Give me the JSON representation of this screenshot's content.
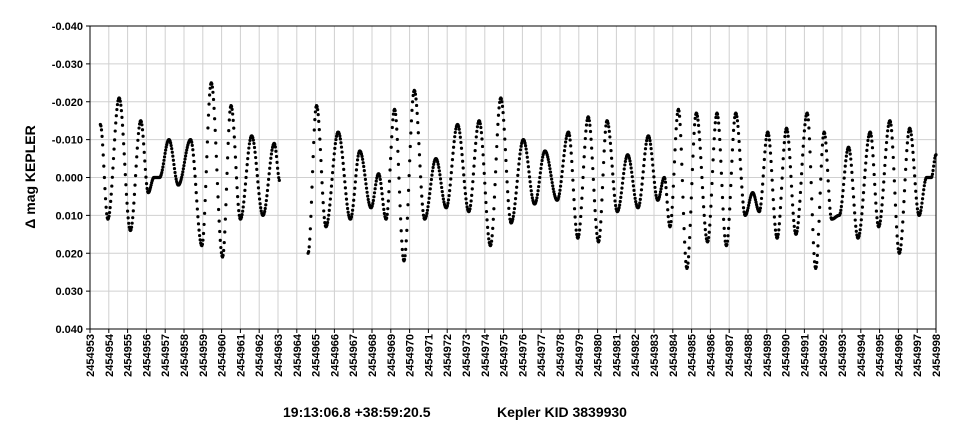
{
  "chart_data": {
    "type": "scatter",
    "title": "",
    "ylabel": "Δ mag KEPLER",
    "xlabel": "",
    "xlim": [
      2454953,
      2454998
    ],
    "ylim": [
      -0.04,
      0.04
    ],
    "y_inverted": true,
    "y_tick_values": [
      -0.04,
      -0.03,
      -0.02,
      -0.01,
      0,
      0.01,
      0.02,
      0.03,
      0.04
    ],
    "y_tick_labels": [
      "-0.040",
      "-0.030",
      "-0.020",
      "-0.010",
      "0.000",
      "0.010",
      "0.020",
      "0.030",
      "0.040"
    ],
    "x_tick_labels": [
      "2454953",
      "2454954",
      "2454955",
      "2454956",
      "2454957",
      "2454958",
      "2454959",
      "2454960",
      "2454961",
      "2454962",
      "2454963",
      "2454964",
      "2454965",
      "2454966",
      "2454967",
      "2454968",
      "2454969",
      "2454970",
      "2454971",
      "2454972",
      "2454973",
      "2454974",
      "2454975",
      "2454976",
      "2454977",
      "2454978",
      "2454979",
      "2454980",
      "2454981",
      "2454982",
      "2454983",
      "2454984",
      "2454985",
      "2454986",
      "2454987",
      "2454988",
      "2454989",
      "2454990",
      "2454991",
      "2454992",
      "2454993",
      "2454994",
      "2454995",
      "2454996",
      "2454997",
      "2454998"
    ],
    "grid": true,
    "marker_color": "#000000",
    "gap": [
      2454963.1,
      2454964.6
    ],
    "extrema": [
      {
        "x": 2454953.55,
        "y": -0.014
      },
      {
        "x": 2454953.95,
        "y": 0.011
      },
      {
        "x": 2454954.55,
        "y": -0.021
      },
      {
        "x": 2454955.15,
        "y": 0.014
      },
      {
        "x": 2454955.7,
        "y": -0.015
      },
      {
        "x": 2454956.1,
        "y": 0.004
      },
      {
        "x": 2454956.4,
        "y": 0.0
      },
      {
        "x": 2454956.7,
        "y": 0.0
      },
      {
        "x": 2454957.2,
        "y": -0.01
      },
      {
        "x": 2454957.7,
        "y": 0.002
      },
      {
        "x": 2454958.35,
        "y": -0.01
      },
      {
        "x": 2454958.95,
        "y": 0.018
      },
      {
        "x": 2454959.45,
        "y": -0.025
      },
      {
        "x": 2454960.05,
        "y": 0.021
      },
      {
        "x": 2454960.5,
        "y": -0.019
      },
      {
        "x": 2454961.0,
        "y": 0.011
      },
      {
        "x": 2454961.6,
        "y": -0.011
      },
      {
        "x": 2454962.2,
        "y": 0.01
      },
      {
        "x": 2454962.8,
        "y": -0.009
      },
      {
        "x": 2454963.1,
        "y": 0.001
      },
      {
        "x": 2454964.6,
        "y": 0.02
      },
      {
        "x": 2454965.05,
        "y": -0.019
      },
      {
        "x": 2454965.55,
        "y": 0.013
      },
      {
        "x": 2454966.2,
        "y": -0.012
      },
      {
        "x": 2454966.85,
        "y": 0.011
      },
      {
        "x": 2454967.35,
        "y": -0.007
      },
      {
        "x": 2454967.95,
        "y": 0.008
      },
      {
        "x": 2454968.35,
        "y": -0.001
      },
      {
        "x": 2454968.75,
        "y": 0.011
      },
      {
        "x": 2454969.2,
        "y": -0.018
      },
      {
        "x": 2454969.7,
        "y": 0.022
      },
      {
        "x": 2454970.25,
        "y": -0.023
      },
      {
        "x": 2454970.8,
        "y": 0.011
      },
      {
        "x": 2454971.4,
        "y": -0.005
      },
      {
        "x": 2454971.95,
        "y": 0.008
      },
      {
        "x": 2454972.55,
        "y": -0.014
      },
      {
        "x": 2454973.15,
        "y": 0.009
      },
      {
        "x": 2454973.7,
        "y": -0.015
      },
      {
        "x": 2454974.3,
        "y": 0.018
      },
      {
        "x": 2454974.85,
        "y": -0.021
      },
      {
        "x": 2454975.4,
        "y": 0.012
      },
      {
        "x": 2454976.05,
        "y": -0.01
      },
      {
        "x": 2454976.65,
        "y": 0.007
      },
      {
        "x": 2454977.2,
        "y": -0.007
      },
      {
        "x": 2454977.85,
        "y": 0.006
      },
      {
        "x": 2454978.45,
        "y": -0.012
      },
      {
        "x": 2454978.95,
        "y": 0.016
      },
      {
        "x": 2454979.5,
        "y": -0.016
      },
      {
        "x": 2454980.05,
        "y": 0.017
      },
      {
        "x": 2454980.5,
        "y": -0.015
      },
      {
        "x": 2454981.05,
        "y": 0.009
      },
      {
        "x": 2454981.6,
        "y": -0.006
      },
      {
        "x": 2454982.15,
        "y": 0.008
      },
      {
        "x": 2454982.7,
        "y": -0.011
      },
      {
        "x": 2454983.2,
        "y": 0.006
      },
      {
        "x": 2454983.55,
        "y": 0.0
      },
      {
        "x": 2454983.85,
        "y": 0.013
      },
      {
        "x": 2454984.3,
        "y": -0.018
      },
      {
        "x": 2454984.75,
        "y": 0.024
      },
      {
        "x": 2454985.25,
        "y": -0.017
      },
      {
        "x": 2454985.85,
        "y": 0.017
      },
      {
        "x": 2454986.35,
        "y": -0.017
      },
      {
        "x": 2454986.85,
        "y": 0.018
      },
      {
        "x": 2454987.35,
        "y": -0.017
      },
      {
        "x": 2454987.85,
        "y": 0.01
      },
      {
        "x": 2454988.25,
        "y": 0.004
      },
      {
        "x": 2454988.6,
        "y": 0.009
      },
      {
        "x": 2454989.05,
        "y": -0.012
      },
      {
        "x": 2454989.55,
        "y": 0.016
      },
      {
        "x": 2454990.05,
        "y": -0.013
      },
      {
        "x": 2454990.55,
        "y": 0.015
      },
      {
        "x": 2454991.15,
        "y": -0.017
      },
      {
        "x": 2454991.6,
        "y": 0.024
      },
      {
        "x": 2454992.05,
        "y": -0.012
      },
      {
        "x": 2454992.45,
        "y": 0.011
      },
      {
        "x": 2454992.85,
        "y": 0.01
      },
      {
        "x": 2454993.35,
        "y": -0.008
      },
      {
        "x": 2454993.85,
        "y": 0.016
      },
      {
        "x": 2454994.5,
        "y": -0.012
      },
      {
        "x": 2454994.95,
        "y": 0.013
      },
      {
        "x": 2454995.55,
        "y": -0.015
      },
      {
        "x": 2454996.05,
        "y": 0.02
      },
      {
        "x": 2454996.6,
        "y": -0.013
      },
      {
        "x": 2454997.1,
        "y": 0.01
      },
      {
        "x": 2454997.5,
        "y": 0.0
      },
      {
        "x": 2454997.75,
        "y": 0.0
      },
      {
        "x": 2454998.0,
        "y": -0.006
      }
    ]
  },
  "footer": {
    "coordinates": "19:13:06.8 +38:59:20.5",
    "target": "Kepler KID 3839930"
  }
}
